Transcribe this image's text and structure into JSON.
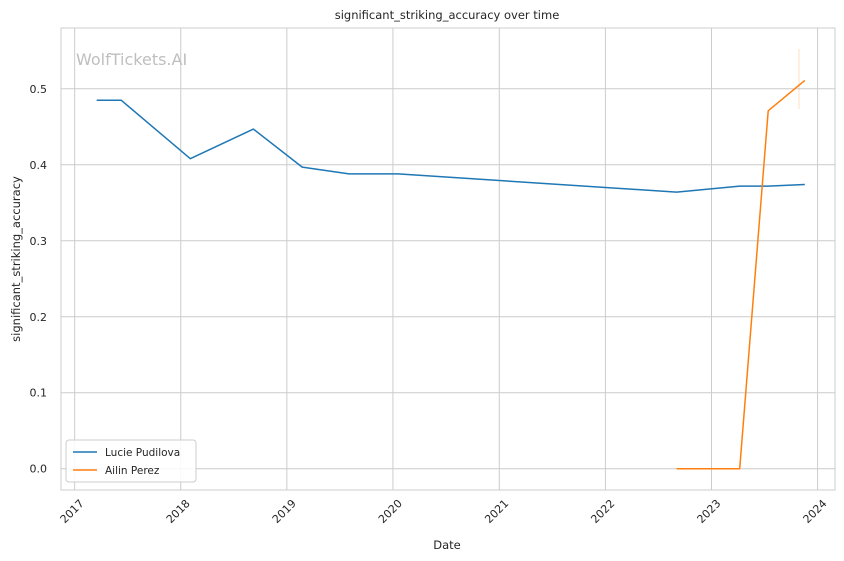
{
  "chart_data": {
    "type": "line",
    "title": "significant_striking_accuracy over time",
    "xlabel": "Date",
    "ylabel": "significant_striking_accuracy",
    "watermark": "WolfTickets.AI",
    "x_ticks": [
      "2017",
      "2018",
      "2019",
      "2020",
      "2021",
      "2022",
      "2023",
      "2024"
    ],
    "y_ticks": [
      "0.0",
      "0.1",
      "0.2",
      "0.3",
      "0.4",
      "0.5"
    ],
    "xlim": [
      "2016-11-15",
      "2024-03-01"
    ],
    "ylim": [
      -0.028,
      0.58
    ],
    "grid": true,
    "legend_position": "lower-left",
    "series": [
      {
        "name": "Lucie Pudilova",
        "color": "#1f77b4",
        "points": [
          {
            "x": "2017-03-18",
            "y": 0.485
          },
          {
            "x": "2017-06-10",
            "y": 0.485
          },
          {
            "x": "2018-02-03",
            "y": 0.408
          },
          {
            "x": "2018-09-08",
            "y": 0.447
          },
          {
            "x": "2019-02-23",
            "y": 0.397
          },
          {
            "x": "2019-08-03",
            "y": 0.388
          },
          {
            "x": "2020-01-18",
            "y": 0.388
          },
          {
            "x": "2022-09-03",
            "y": 0.364
          },
          {
            "x": "2023-04-08",
            "y": 0.372
          },
          {
            "x": "2023-07-15",
            "y": 0.372
          },
          {
            "x": "2023-11-18",
            "y": 0.374
          }
        ]
      },
      {
        "name": "Ailin Perez",
        "color": "#ff7f0e",
        "points": [
          {
            "x": "2022-09-03",
            "y": 0.0
          },
          {
            "x": "2023-04-08",
            "y": 0.0
          },
          {
            "x": "2023-07-15",
            "y": 0.471
          },
          {
            "x": "2023-11-18",
            "y": 0.511
          }
        ]
      }
    ]
  }
}
